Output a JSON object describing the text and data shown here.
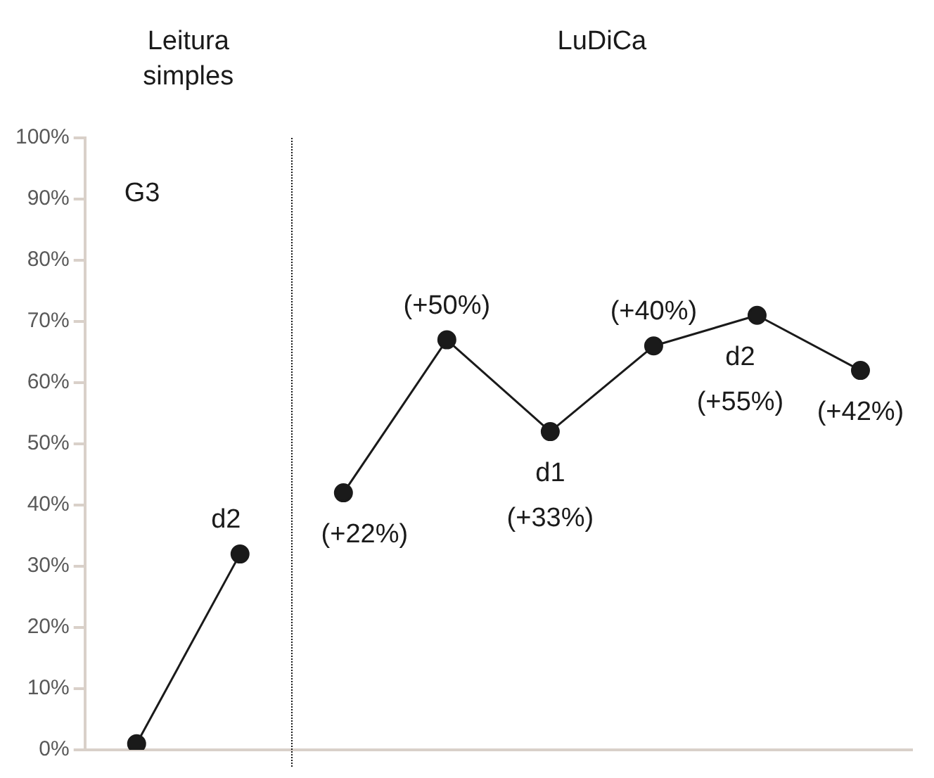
{
  "chart_data": {
    "type": "line",
    "categories": [
      null,
      null,
      null,
      null,
      null,
      null,
      null,
      null
    ],
    "series": [
      {
        "color": "#1a1a1a",
        "values": [
          1,
          32,
          null,
          null,
          null,
          null,
          null,
          null
        ]
      },
      {
        "color": "#1a1a1a",
        "values": [
          null,
          null,
          42,
          67,
          52,
          66,
          71,
          62
        ]
      }
    ],
    "ylim": [
      0,
      100
    ],
    "yticks": [
      {
        "value": 0,
        "label": "0%"
      },
      {
        "value": 10,
        "label": "10%"
      },
      {
        "value": 20,
        "label": "20%"
      },
      {
        "value": 30,
        "label": "30%"
      },
      {
        "value": 40,
        "label": "40%"
      },
      {
        "value": 50,
        "label": "50%"
      },
      {
        "value": 60,
        "label": "60%"
      },
      {
        "value": 70,
        "label": "70%"
      },
      {
        "value": 80,
        "label": "80%"
      },
      {
        "value": 90,
        "label": "90%"
      },
      {
        "value": 100,
        "label": "100%"
      }
    ],
    "annotations": [
      "Leitura simples",
      "LuDiCa",
      "G3",
      "d2",
      "(+22%)",
      "(+50%)",
      "d1",
      "(+33%)",
      "(+40%)",
      "d2",
      "(+55%)",
      "(+42%)"
    ],
    "grid": false,
    "legend": false,
    "marker": "circle",
    "line_style": "solid",
    "tick_labels": "y"
  }
}
